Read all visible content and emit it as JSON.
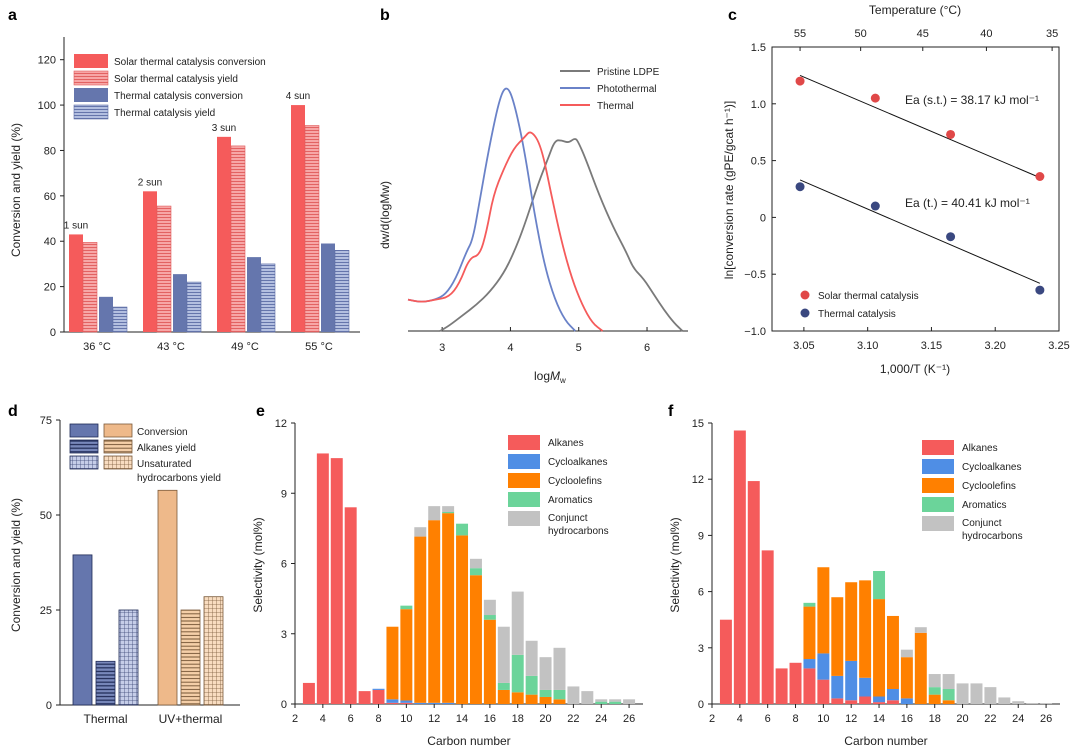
{
  "colors": {
    "solar": "#f55b5b",
    "solar_yield": "#f7a6a6",
    "thermal": "#6576ad",
    "thermal_yield": "#a6b3d8",
    "pristine": "#7a7a7a",
    "photothermal": "#6a82c8",
    "thermal_line": "#f55b5b",
    "dot_red": "#e04848",
    "dot_blue": "#3a4880",
    "tan": "#eeb98a",
    "alkanes": "#f55b5b",
    "cycloalkanes": "#4f8ee5",
    "cycloolefins": "#ff8000",
    "aromatics": "#6bd49a",
    "conjunct": "#c2c2c2"
  },
  "chart_data": [
    {
      "panel": "a",
      "type": "bar",
      "ylabel": "Conversion and yield (%)",
      "ylim": [
        0,
        130
      ],
      "yticks": [
        0,
        20,
        40,
        60,
        80,
        100,
        120
      ],
      "categories": [
        "36 °C",
        "43 °C",
        "49 °C",
        "55 °C"
      ],
      "annotations": [
        "1 sun",
        "2 sun",
        "3 sun",
        "4 sun"
      ],
      "series": [
        {
          "name": "Solar thermal catalysis conversion",
          "values": [
            43,
            62,
            86,
            100
          ]
        },
        {
          "name": "Solar thermal catalysis yield",
          "values": [
            39.5,
            55.5,
            82,
            91
          ]
        },
        {
          "name": "Thermal catalysis conversion",
          "values": [
            15.5,
            25.5,
            33,
            39
          ]
        },
        {
          "name": "Thermal catalysis yield",
          "values": [
            11,
            22,
            30,
            36
          ]
        }
      ]
    },
    {
      "panel": "b",
      "type": "line",
      "xlabel_main": "log",
      "xlabel_sub": "M",
      "xlabel_subsub": "w",
      "ylabel": "dw/d(logMw)",
      "xlim": [
        2.5,
        6.6
      ],
      "xticks": [
        3,
        4,
        5,
        6
      ],
      "series": [
        {
          "name": "Pristine LDPE",
          "points": [
            [
              2.97,
              0
            ],
            [
              3.1,
              0.02
            ],
            [
              3.3,
              0.06
            ],
            [
              3.5,
              0.1
            ],
            [
              3.7,
              0.15
            ],
            [
              3.9,
              0.22
            ],
            [
              4.05,
              0.3
            ],
            [
              4.2,
              0.4
            ],
            [
              4.4,
              0.56
            ],
            [
              4.55,
              0.66
            ],
            [
              4.65,
              0.73
            ],
            [
              4.75,
              0.73
            ],
            [
              4.85,
              0.72
            ],
            [
              4.95,
              0.74
            ],
            [
              5.0,
              0.72
            ],
            [
              5.1,
              0.66
            ],
            [
              5.3,
              0.52
            ],
            [
              5.5,
              0.4
            ],
            [
              5.7,
              0.3
            ],
            [
              5.8,
              0.24
            ],
            [
              5.95,
              0.2
            ],
            [
              6.1,
              0.14
            ],
            [
              6.25,
              0.08
            ],
            [
              6.4,
              0.03
            ],
            [
              6.52,
              0
            ]
          ]
        },
        {
          "name": "Photothermal",
          "points": [
            [
              2.5,
              0.12
            ],
            [
              2.7,
              0.11
            ],
            [
              2.9,
              0.12
            ],
            [
              3.05,
              0.14
            ],
            [
              3.2,
              0.2
            ],
            [
              3.35,
              0.3
            ],
            [
              3.45,
              0.35
            ],
            [
              3.55,
              0.5
            ],
            [
              3.7,
              0.72
            ],
            [
              3.85,
              0.9
            ],
            [
              3.95,
              0.94
            ],
            [
              4.05,
              0.88
            ],
            [
              4.2,
              0.7
            ],
            [
              4.35,
              0.45
            ],
            [
              4.5,
              0.25
            ],
            [
              4.65,
              0.12
            ],
            [
              4.8,
              0.04
            ],
            [
              4.95,
              0
            ]
          ]
        },
        {
          "name": "Thermal",
          "points": [
            [
              2.5,
              0.12
            ],
            [
              2.7,
              0.11
            ],
            [
              2.9,
              0.12
            ],
            [
              3.1,
              0.13
            ],
            [
              3.25,
              0.18
            ],
            [
              3.4,
              0.28
            ],
            [
              3.55,
              0.29
            ],
            [
              3.65,
              0.38
            ],
            [
              3.75,
              0.52
            ],
            [
              3.9,
              0.62
            ],
            [
              4.05,
              0.7
            ],
            [
              4.2,
              0.74
            ],
            [
              4.3,
              0.77
            ],
            [
              4.45,
              0.71
            ],
            [
              4.6,
              0.52
            ],
            [
              4.75,
              0.34
            ],
            [
              4.9,
              0.2
            ],
            [
              5.05,
              0.1
            ],
            [
              5.2,
              0.03
            ],
            [
              5.35,
              0
            ]
          ]
        }
      ]
    },
    {
      "panel": "c",
      "type": "scatter",
      "xlabel": "1,000/T (K⁻¹)",
      "ylabel": "ln[conversion rate (gPE/gcat h⁻¹)]",
      "xlim": [
        3.025,
        3.25
      ],
      "ylim": [
        -1.0,
        1.5
      ],
      "xticks": [
        3.05,
        3.1,
        3.15,
        3.2,
        3.25
      ],
      "xticks_text": [
        "3.05",
        "3.10",
        "3.15",
        "3.20",
        "3.25"
      ],
      "yticks": [
        -1.0,
        -0.5,
        0,
        0.5,
        1.0,
        1.5
      ],
      "yticks_text": [
        "−1.0",
        "−0.5",
        "0",
        "0.5",
        "1.0",
        "1.5"
      ],
      "top_axis_label": "Temperature (°C)",
      "top_ticks": [
        {
          "label": "55",
          "x": 3.047
        },
        {
          "label": "50",
          "x": 3.0945
        },
        {
          "label": "45",
          "x": 3.1432
        },
        {
          "label": "40",
          "x": 3.1931
        },
        {
          "label": "35",
          "x": 3.2446
        }
      ],
      "series": [
        {
          "name": "Solar thermal catalysis",
          "points": [
            [
              3.047,
              1.2
            ],
            [
              3.106,
              1.05
            ],
            [
              3.165,
              0.73
            ],
            [
              3.235,
              0.36
            ]
          ],
          "fit": [
            [
              3.047,
              1.25
            ],
            [
              3.235,
              0.35
            ]
          ],
          "annotation": "Ea (s.t.) = 38.17 kJ mol⁻¹"
        },
        {
          "name": "Thermal catalysis",
          "points": [
            [
              3.047,
              0.27
            ],
            [
              3.106,
              0.1
            ],
            [
              3.165,
              -0.17
            ],
            [
              3.235,
              -0.64
            ]
          ],
          "fit": [
            [
              3.047,
              0.33
            ],
            [
              3.235,
              -0.58
            ]
          ],
          "annotation": "Ea (t.) = 40.41 kJ mol⁻¹"
        }
      ]
    },
    {
      "panel": "d",
      "type": "bar",
      "ylabel": "Conversion and yield (%)",
      "ylim": [
        0,
        75
      ],
      "yticks": [
        0,
        25,
        50,
        75
      ],
      "categories": [
        "Thermal",
        "UV+thermal"
      ],
      "series": [
        {
          "name": "Conversion",
          "values": [
            39.5,
            56.5
          ]
        },
        {
          "name": "Alkanes yield",
          "values": [
            11.5,
            25
          ]
        },
        {
          "name": "Unsaturated hydrocarbons yield",
          "values": [
            25,
            28.5
          ]
        }
      ]
    },
    {
      "panel": "e",
      "type": "bar",
      "stacked": true,
      "xlabel": "Carbon number",
      "ylabel": "Selectivity (mol%)",
      "xlim": [
        2,
        27
      ],
      "ylim": [
        0,
        12
      ],
      "xticks": [
        2,
        4,
        6,
        8,
        10,
        12,
        14,
        16,
        18,
        20,
        22,
        24,
        26
      ],
      "yticks": [
        0,
        3,
        6,
        9,
        12
      ],
      "categories": [
        3,
        4,
        5,
        6,
        7,
        8,
        9,
        10,
        11,
        12,
        13,
        14,
        15,
        16,
        17,
        18,
        19,
        20,
        21,
        22,
        23,
        24,
        25,
        26
      ],
      "series": [
        {
          "name": "Alkanes",
          "values": [
            0.9,
            10.7,
            10.5,
            8.4,
            0.55,
            0.6,
            0.05,
            0.05,
            0,
            0,
            0,
            0,
            0,
            0,
            0,
            0,
            0,
            0,
            0,
            0,
            0,
            0,
            0,
            0
          ]
        },
        {
          "name": "Cycloalkanes",
          "values": [
            0,
            0,
            0,
            0,
            0,
            0.05,
            0.15,
            0.1,
            0.05,
            0.05,
            0.05,
            0,
            0,
            0,
            0,
            0,
            0,
            0,
            0,
            0,
            0,
            0,
            0,
            0
          ]
        },
        {
          "name": "Cycloolefins",
          "values": [
            0,
            0,
            0,
            0,
            0,
            0,
            3.1,
            3.9,
            7.1,
            7.8,
            8.1,
            7.2,
            5.5,
            3.6,
            0.6,
            0.5,
            0.4,
            0.3,
            0.2,
            0,
            0,
            0,
            0,
            0
          ]
        },
        {
          "name": "Aromatics",
          "values": [
            0,
            0,
            0,
            0,
            0,
            0,
            0,
            0.15,
            0,
            0,
            0.05,
            0.5,
            0.3,
            0.2,
            0.3,
            1.6,
            0.8,
            0.3,
            0.4,
            0,
            0,
            0.1,
            0.1,
            0
          ]
        },
        {
          "name": "Conjunct hydrocarbons",
          "values": [
            0,
            0,
            0,
            0,
            0,
            0,
            0,
            0,
            0.4,
            0.6,
            0.25,
            0,
            0.4,
            0.65,
            2.4,
            2.7,
            1.5,
            1.4,
            1.8,
            0.75,
            0.55,
            0.1,
            0.1,
            0.2
          ]
        }
      ]
    },
    {
      "panel": "f",
      "type": "bar",
      "stacked": true,
      "xlabel": "Carbon number",
      "ylabel": "Selectivity (mol%)",
      "xlim": [
        2,
        27
      ],
      "ylim": [
        0,
        15
      ],
      "xticks": [
        2,
        4,
        6,
        8,
        10,
        12,
        14,
        16,
        18,
        20,
        22,
        24,
        26
      ],
      "yticks": [
        0,
        3,
        6,
        9,
        12,
        15
      ],
      "categories": [
        3,
        4,
        5,
        6,
        7,
        8,
        9,
        10,
        11,
        12,
        13,
        14,
        15,
        16,
        17,
        18,
        19,
        20,
        21,
        22,
        23,
        24,
        25,
        26
      ],
      "series": [
        {
          "name": "Alkanes",
          "values": [
            4.5,
            14.6,
            11.9,
            8.2,
            1.9,
            2.2,
            1.9,
            1.3,
            0.3,
            0.2,
            0.4,
            0.1,
            0.2,
            0,
            0,
            0,
            0,
            0,
            0,
            0,
            0,
            0,
            0,
            0
          ]
        },
        {
          "name": "Cycloalkanes",
          "values": [
            0,
            0,
            0,
            0,
            0,
            0,
            0.5,
            1.4,
            1.2,
            2.1,
            1.0,
            0.3,
            0.6,
            0.3,
            0,
            0,
            0,
            0,
            0,
            0,
            0,
            0,
            0,
            0
          ]
        },
        {
          "name": "Cycloolefins",
          "values": [
            0,
            0,
            0,
            0,
            0,
            0,
            2.8,
            4.6,
            4.2,
            4.2,
            5.2,
            5.2,
            3.9,
            2.2,
            3.8,
            0.5,
            0.2,
            0,
            0,
            0,
            0,
            0,
            0,
            0
          ]
        },
        {
          "name": "Aromatics",
          "values": [
            0,
            0,
            0,
            0,
            0,
            0,
            0.2,
            0,
            0,
            0,
            0,
            1.5,
            0,
            0,
            0,
            0.4,
            0.6,
            0,
            0,
            0,
            0,
            0,
            0,
            0
          ]
        },
        {
          "name": "Conjunct hydrocarbons",
          "values": [
            0,
            0,
            0,
            0,
            0,
            0,
            0,
            0,
            0,
            0,
            0,
            0,
            0,
            0.4,
            0.3,
            0.7,
            0.8,
            1.1,
            1.1,
            0.9,
            0.35,
            0.15,
            0.05,
            0.05
          ]
        }
      ]
    }
  ]
}
